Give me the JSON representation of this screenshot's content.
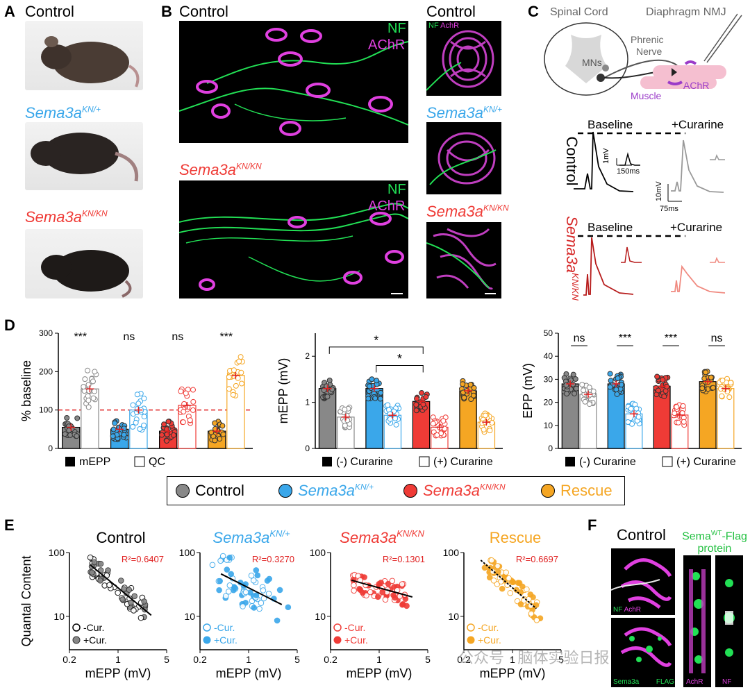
{
  "colors": {
    "control": "#888888",
    "het": "#3aa7ea",
    "ko": "#ef3b36",
    "rescue": "#f5a623",
    "nf": "#22e055",
    "achr": "#e040e0",
    "curarine": "#f08a80"
  },
  "panels": {
    "A": {
      "label": "A",
      "captions": [
        "Control",
        "Sema3a",
        "Sema3a"
      ],
      "sups": [
        "KN/+",
        "KN/KN"
      ]
    },
    "B": {
      "label": "B",
      "left_control": "Control",
      "left_ko": "Sema3a",
      "left_ko_sup": "KN/KN",
      "nf": "NF",
      "achr": "AChR",
      "right_control": "Control",
      "right_nf": "NF",
      "right_achr": "AchR",
      "right_het": "Sema3a",
      "right_het_sup": "KN/+",
      "right_ko": "Sema3a",
      "right_ko_sup": "KN/KN"
    },
    "C": {
      "label": "C",
      "spinal_cord": "Spinal Cord",
      "diaphragm": "Diaphragm NMJ",
      "mns": "MNs",
      "phrenic": "Phrenic",
      "nerve": "Nerve",
      "achr": "AChR",
      "muscle": "Muscle",
      "baseline": "Baseline",
      "curarine": "+Curarine",
      "row_control": "Control",
      "row_ko": "Sema3a",
      "row_ko_sup": "KN/KN",
      "scale1_y": "1mV",
      "scale1_x": "150ms",
      "scale2_y": "10mV",
      "scale2_x": "75ms"
    },
    "D": {
      "label": "D",
      "legend": {
        "control": "Control",
        "het": "Sema3a",
        "het_sup": "KN/+",
        "ko": "Sema3a",
        "ko_sup": "KN/KN",
        "rescue": "Rescue"
      }
    },
    "E": {
      "label": "E"
    },
    "F": {
      "label": "F",
      "title": "Control",
      "flag_title_1": "Sema",
      "flag_title_sup": "WT",
      "flag_title_2": "-Flag",
      "flag_title_3": "protein",
      "nf": "NF",
      "achr": "AchR",
      "sema3a": "Sema3a",
      "flag": "FLAG",
      "achr2": "AchR",
      "nf2": "NF",
      "watermark": "公众号 · 脑体实验日报"
    }
  },
  "chart_data": [
    {
      "type": "bar",
      "id": "D1",
      "ylabel": "% baseline",
      "ylim": [
        0,
        300
      ],
      "yticks": [
        0,
        100,
        200,
        300
      ],
      "reference_line": 100,
      "legend": [
        "mEPP",
        "QC"
      ],
      "categories": [
        "Control",
        "Sema3aKN/+",
        "Sema3aKN/KN",
        "Rescue"
      ],
      "series": [
        {
          "name": "mEPP",
          "filled": true,
          "values": [
            55,
            50,
            45,
            45
          ]
        },
        {
          "name": "QC",
          "filled": false,
          "values": [
            155,
            100,
            112,
            190
          ]
        }
      ],
      "significance": [
        "***",
        "ns",
        "ns",
        "***"
      ]
    },
    {
      "type": "bar",
      "id": "D2",
      "ylabel": "mEPP (mV)",
      "ylim": [
        0,
        2.5
      ],
      "yticks": [
        0,
        1,
        2
      ],
      "legend": [
        "(-) Curarine",
        "(+) Curarine"
      ],
      "categories": [
        "Control",
        "Sema3aKN/+",
        "Sema3aKN/KN",
        "Rescue"
      ],
      "series": [
        {
          "name": "(-) Curarine",
          "filled": true,
          "values": [
            1.3,
            1.3,
            1.02,
            1.25
          ]
        },
        {
          "name": "(+) Curarine",
          "filled": false,
          "values": [
            0.68,
            0.72,
            0.46,
            0.57
          ]
        }
      ],
      "annotations": [
        "*",
        "*"
      ]
    },
    {
      "type": "bar",
      "id": "D3",
      "ylabel": "EPP (mV)",
      "ylim": [
        0,
        50
      ],
      "yticks": [
        0,
        10,
        20,
        30,
        40,
        50
      ],
      "legend": [
        "(-) Curarine",
        "(+) Curarine"
      ],
      "categories": [
        "Control",
        "Sema3aKN/+",
        "Sema3aKN/KN",
        "Rescue"
      ],
      "series": [
        {
          "name": "(-) Curarine",
          "filled": true,
          "values": [
            28,
            28,
            27,
            29
          ]
        },
        {
          "name": "(+) Curarine",
          "filled": false,
          "values": [
            23.5,
            15,
            14.5,
            26
          ]
        }
      ],
      "significance": [
        "ns",
        "***",
        "***",
        "ns"
      ]
    },
    {
      "type": "scatter",
      "id": "E1",
      "title": "Control",
      "xlabel": "mEPP (mV)",
      "ylabel": "Quantal Content",
      "xscale": "log",
      "yscale": "log",
      "xlim": [
        0.2,
        5
      ],
      "ylim": [
        3,
        100
      ],
      "xticks": [
        0.2,
        1,
        5
      ],
      "yticks": [
        10,
        100
      ],
      "r2": "R²=0.6407",
      "legend": [
        "-Cur.",
        "+Cur."
      ]
    },
    {
      "type": "scatter",
      "id": "E2",
      "title": "Sema3a",
      "title_sup": "KN/+",
      "xlabel": "mEPP (mV)",
      "xscale": "log",
      "yscale": "log",
      "xlim": [
        0.2,
        5
      ],
      "ylim": [
        3,
        100
      ],
      "xticks": [
        0.2,
        1,
        5
      ],
      "yticks": [
        10,
        100
      ],
      "r2": "R²=0.3270",
      "legend": [
        "-Cur.",
        "+Cur."
      ]
    },
    {
      "type": "scatter",
      "id": "E3",
      "title": "Sema3a",
      "title_sup": "KN/KN",
      "xlabel": "mEPP (mV)",
      "xscale": "log",
      "yscale": "log",
      "xlim": [
        0.2,
        5
      ],
      "ylim": [
        3,
        100
      ],
      "xticks": [
        0.2,
        1,
        5
      ],
      "yticks": [
        10,
        100
      ],
      "r2": "R²=0.1301",
      "legend": [
        "-Cur.",
        "+Cur."
      ]
    },
    {
      "type": "scatter",
      "id": "E4",
      "title": "Rescue",
      "xlabel": "mEPP (mV)",
      "xscale": "log",
      "yscale": "log",
      "xlim": [
        0.2,
        5
      ],
      "ylim": [
        3,
        100
      ],
      "xticks": [
        0.2,
        1,
        5
      ],
      "yticks": [
        10,
        100
      ],
      "r2": "R²=0.6697",
      "legend": [
        "-Cur.",
        "+Cur."
      ]
    }
  ]
}
